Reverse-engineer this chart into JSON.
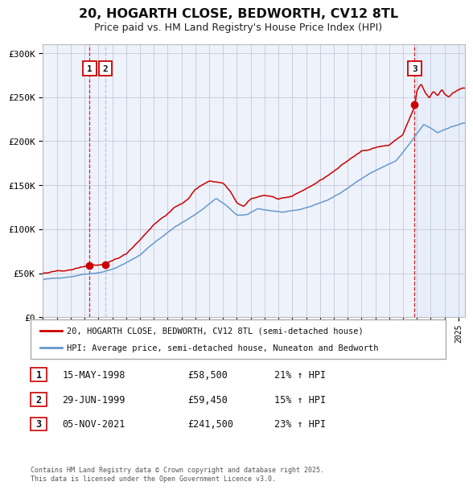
{
  "title": "20, HOGARTH CLOSE, BEDWORTH, CV12 8TL",
  "subtitle": "Price paid vs. HM Land Registry's House Price Index (HPI)",
  "background_color": "#ffffff",
  "plot_background": "#eef2fb",
  "grid_color": "#c8c8d8",
  "hpi_line_color": "#6699cc",
  "price_line_color": "#cc0000",
  "sale_marker_color": "#cc0000",
  "sale1_x": 1998.37,
  "sale1_y": 58500,
  "sale2_x": 1999.49,
  "sale2_y": 59450,
  "sale3_x": 2021.84,
  "sale3_y": 241500,
  "vline_red_color": "#cc0000",
  "vline_blue_color": "#aabbdd",
  "shade_color": "#ccddf0",
  "legend_label1": "20, HOGARTH CLOSE, BEDWORTH, CV12 8TL (semi-detached house)",
  "legend_label2": "HPI: Average price, semi-detached house, Nuneaton and Bedworth",
  "table_row1": [
    "1",
    "15-MAY-1998",
    "£58,500",
    "21% ↑ HPI"
  ],
  "table_row2": [
    "2",
    "29-JUN-1999",
    "£59,450",
    "15% ↑ HPI"
  ],
  "table_row3": [
    "3",
    "05-NOV-2021",
    "£241,500",
    "23% ↑ HPI"
  ],
  "footnote": "Contains HM Land Registry data © Crown copyright and database right 2025.\nThis data is licensed under the Open Government Licence v3.0.",
  "ylim": [
    0,
    310000
  ],
  "xlim_start": 1995.0,
  "xlim_end": 2025.5,
  "yticks": [
    0,
    50000,
    100000,
    150000,
    200000,
    250000,
    300000
  ],
  "ytick_labels": [
    "£0",
    "£50K",
    "£100K",
    "£150K",
    "£200K",
    "£250K",
    "£300K"
  ]
}
